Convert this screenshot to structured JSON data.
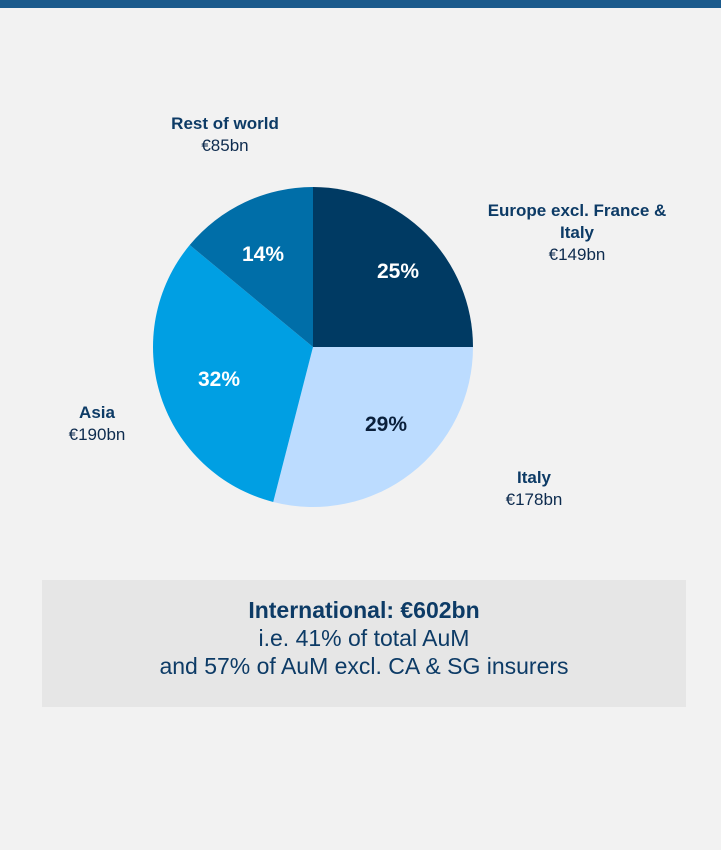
{
  "chart_data": {
    "type": "pie",
    "categories": [
      "Europe excl. France & Italy",
      "Italy",
      "Asia",
      "Rest of world"
    ],
    "values": [
      25,
      29,
      32,
      14
    ],
    "value_labels": [
      "25%",
      "29%",
      "32%",
      "14%"
    ],
    "amounts": [
      "€149bn",
      "€178bn",
      "€190bn",
      "€85bn"
    ],
    "colors": [
      "#003a63",
      "#bcdcff",
      "#009fe3",
      "#006ea8"
    ],
    "label_colors": [
      "#ffffff",
      "#0a1f3a",
      "#ffffff",
      "#ffffff"
    ],
    "note": {
      "title": "International: €602bn",
      "lines": [
        "i.e. 41% of total AuM",
        "and 57% of AuM excl. CA & SG insurers"
      ]
    }
  }
}
